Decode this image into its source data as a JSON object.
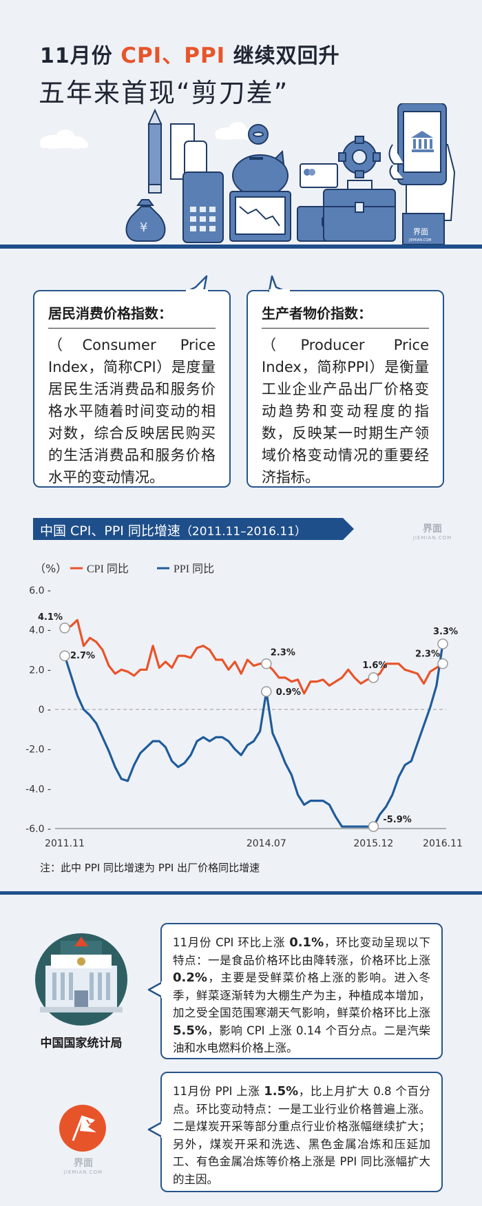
{
  "header": {
    "line1_pre": "11月份 ",
    "line1_cpi": "CPI",
    "line1_sep": "、",
    "line1_ppi": "PPI",
    "line1_post": " 继续双回升",
    "line2": "五年来首现“剪刀差”"
  },
  "hero": {
    "yuan_symbol": "¥",
    "brand_cn": "界面",
    "brand_en": "JIEMIAN.COM"
  },
  "definitions": {
    "cpi": {
      "heading": "居民消费价格指数：",
      "text": "（Consumer Price Index，简称CPI）是度量居民生活消费品和服务价格水平随着时间变动的相对数，综合反映居民购买的生活消费品和服务价格水平的变动情况。"
    },
    "ppi": {
      "heading": "生产者物价指数：",
      "text": "（Producer Price Index，简称PPI）是衡量工业企业产品出厂价格变动趋势和变动程度的指数，反映某一时期生产领域价格变动情况的重要经济指标。"
    }
  },
  "chart_banner": {
    "title": "中国 CPI、PPI 同比增速",
    "range": "（2011.11–2016.11）",
    "watermark_cn": "界面",
    "watermark_en": "JIEMIAN.COM"
  },
  "chart_note": "注：此中 PPI 同比增速为 PPI 出厂价格同比增速",
  "colors": {
    "navy": "#1f4f8a",
    "cpi": "#e8542a",
    "ppi": "#1f5b9a",
    "bg": "#eef1f6"
  },
  "chart_data": {
    "type": "line",
    "ylabel": "（%）",
    "ylim": [
      -6.0,
      6.0
    ],
    "yticks": [
      6.0,
      4.0,
      2.0,
      0,
      -2.0,
      -4.0,
      -6.0
    ],
    "ytick_labels": [
      "6.0 -",
      "4.0 -",
      "2.0 -",
      "0 -",
      "-2.0 -",
      "-4.0 -",
      "-6.0 -"
    ],
    "x_labels": [
      {
        "index": 0,
        "label": "2011.11"
      },
      {
        "index": 32,
        "label": "2014.07"
      },
      {
        "index": 49,
        "label": "2015.12"
      },
      {
        "index": 60,
        "label": "2016.11"
      }
    ],
    "series": [
      {
        "name": "CPI 同比",
        "color": "#e8542a",
        "values": [
          4.1,
          4.2,
          4.5,
          3.2,
          3.6,
          3.4,
          3.0,
          2.2,
          1.8,
          2.0,
          1.9,
          1.7,
          2.0,
          2.0,
          3.2,
          2.1,
          2.4,
          2.1,
          2.7,
          2.7,
          2.6,
          3.1,
          3.2,
          3.0,
          2.5,
          2.5,
          2.0,
          2.4,
          1.8,
          2.5,
          2.2,
          2.3,
          2.3,
          2.0,
          1.6,
          1.6,
          1.4,
          1.5,
          0.8,
          1.4,
          1.4,
          1.5,
          1.2,
          1.4,
          1.6,
          2.0,
          1.6,
          1.3,
          1.5,
          1.6,
          1.8,
          2.3,
          2.3,
          2.3,
          2.0,
          1.9,
          1.8,
          1.3,
          1.9,
          2.1,
          2.3
        ]
      },
      {
        "name": "PPI 同比",
        "color": "#1f5b9a",
        "values": [
          2.7,
          1.7,
          0.7,
          0.0,
          -0.3,
          -0.7,
          -1.4,
          -2.1,
          -2.9,
          -3.5,
          -3.6,
          -2.8,
          -2.2,
          -1.9,
          -1.6,
          -1.6,
          -1.9,
          -2.6,
          -2.9,
          -2.7,
          -2.3,
          -1.6,
          -1.4,
          -1.6,
          -1.4,
          -1.4,
          -1.6,
          -2.0,
          -2.3,
          -1.8,
          -1.6,
          -1.1,
          0.9,
          -1.2,
          -1.9,
          -2.7,
          -3.3,
          -4.3,
          -4.8,
          -4.6,
          -4.6,
          -4.6,
          -4.8,
          -5.4,
          -5.9,
          -5.9,
          -5.9,
          -5.9,
          -5.9,
          -5.9,
          -5.3,
          -4.9,
          -4.3,
          -3.4,
          -2.8,
          -2.6,
          -1.7,
          -0.8,
          0.1,
          1.2,
          3.3
        ]
      }
    ],
    "annotations": [
      {
        "series": 0,
        "index": 0,
        "label": "4.1%"
      },
      {
        "series": 1,
        "index": 0,
        "label": "2.7%"
      },
      {
        "series": 0,
        "index": 32,
        "label": "2.3%"
      },
      {
        "series": 1,
        "index": 32,
        "label": "0.9%"
      },
      {
        "series": 0,
        "index": 49,
        "label": "1.6%"
      },
      {
        "series": 1,
        "index": 49,
        "label": "-5.9%"
      },
      {
        "series": 0,
        "index": 60,
        "label": "2.3%"
      },
      {
        "series": 1,
        "index": 60,
        "label": "3.3%"
      }
    ]
  },
  "agency": {
    "name": "中国国家统计局",
    "brand_cn": "界面",
    "brand_en": "JIEMIAN.COM"
  },
  "cpi_info": {
    "p1": "11月份 CPI 环比上涨 ",
    "b1": "0.1%",
    "p2": "，环比变动呈现以下特点：一是食品价格环比由降转涨，价格环比上涨 ",
    "b2": "0.2%",
    "p3": "，主要是受鲜菜价格上涨的影响。进入冬季，鲜菜逐渐转为大棚生产为主，种植成本增加，加之受全国范围寒潮天气影响，鲜菜价格环比上涨 ",
    "b3": "5.5%",
    "p4": "，影响 CPI 上涨 0.14 个百分点。二是汽柴油和水电燃料价格上涨。"
  },
  "ppi_info": {
    "p1": "11月份 PPI 上涨 ",
    "b1": "1.5%",
    "p2": "，比上月扩大 0.8 个百分点。环比变动特点：一是工业行业价格普遍上涨。二是煤炭开采等部分重点行业价格涨幅继续扩大；另外，煤炭开采和洗选、黑色金属冶炼和压延加工、有色金属冶炼等价格上涨是 PPI 同比涨幅扩大的主因。"
  }
}
